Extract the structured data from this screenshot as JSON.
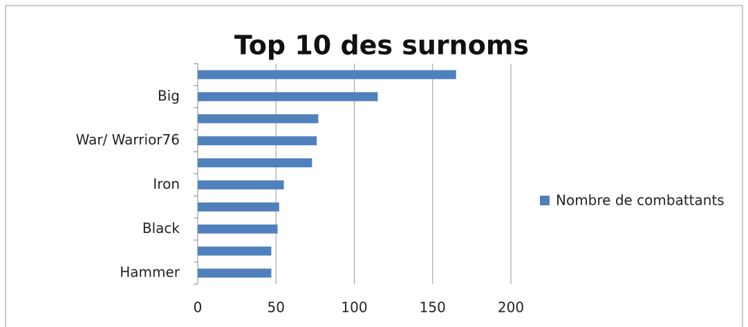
{
  "chart_data": {
    "type": "bar",
    "orientation": "horizontal",
    "title": "Top 10 des surnoms",
    "categories": [
      null,
      "Big",
      null,
      "War/ Warrior76",
      null,
      "Iron",
      null,
      "Black",
      null,
      "Hammer"
    ],
    "series": [
      {
        "name": "Nombre de combattants",
        "color": "#4f81bd",
        "values": [
          165,
          115,
          77,
          76,
          73,
          55,
          52,
          51,
          47,
          47
        ]
      }
    ],
    "xlim": [
      0,
      200
    ],
    "xticks": [
      0,
      50,
      100,
      150,
      200
    ],
    "grid": true,
    "legend": "right"
  }
}
